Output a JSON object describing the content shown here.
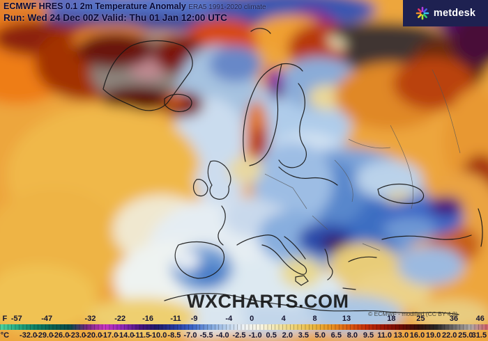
{
  "header": {
    "model": "ECMWF HRES 0.1",
    "title": "2m Temperature Anomaly",
    "climate_note": "ERA5 1991-2020 climate",
    "run_line": "Run: Wed 24 Dec 00Z Valid: Thu 01 Jan 12:00 UTC"
  },
  "branding": {
    "logo_text": "metdesk",
    "logo_icon": "metdesk-star",
    "watermark": "WXCHARTS.COM",
    "attribution": "© ECMWF - modified (CC BY 4.0)"
  },
  "scale_bar": {
    "f_prefix": "F",
    "c_prefix": "°C",
    "f_labels": [
      [
        "-57",
        3.4
      ],
      [
        "-47",
        9.6
      ],
      [
        "-32",
        18.5
      ],
      [
        "-22",
        24.6
      ],
      [
        "-16",
        30.3
      ],
      [
        "-11",
        36.0
      ],
      [
        "-9",
        39.8
      ],
      [
        "-4",
        46.9
      ],
      [
        "0",
        51.6
      ],
      [
        "4",
        58.1
      ],
      [
        "8",
        64.5
      ],
      [
        "13",
        71.0
      ],
      [
        "18",
        80.2
      ],
      [
        "25",
        86.2
      ],
      [
        "36",
        93.0
      ],
      [
        "46",
        98.4
      ]
    ],
    "c_labels": [
      [
        "-32.0",
        5.8
      ],
      [
        "-29.0",
        9.1
      ],
      [
        "-26.0",
        12.4
      ],
      [
        "-23.0",
        15.8
      ],
      [
        "-20.0",
        19.1
      ],
      [
        "-17.0",
        22.4
      ],
      [
        "-14.0",
        25.7
      ],
      [
        "-11.5",
        29.0
      ],
      [
        "-10.0",
        32.4
      ],
      [
        "-8.5",
        35.7
      ],
      [
        "-7.0",
        39.0
      ],
      [
        "-5.5",
        42.3
      ],
      [
        "-4.0",
        45.6
      ],
      [
        "-2.5",
        49.0
      ],
      [
        "-1.0",
        52.3
      ],
      [
        "0.5",
        55.6
      ],
      [
        "2.0",
        58.9
      ],
      [
        "3.5",
        62.2
      ],
      [
        "5.0",
        65.6
      ],
      [
        "6.5",
        68.9
      ],
      [
        "8.0",
        72.2
      ],
      [
        "9.5",
        75.5
      ],
      [
        "11.0",
        78.8
      ],
      [
        "13.0",
        82.2
      ],
      [
        "16.0",
        85.5
      ],
      [
        "19.0",
        88.8
      ],
      [
        "22.0",
        92.1
      ],
      [
        "25.0",
        95.4
      ],
      [
        "31.5",
        98.2
      ]
    ],
    "gradient": [
      {
        "pos": 0,
        "color": "#4fd49e"
      },
      {
        "pos": 3.6,
        "color": "#25a981"
      },
      {
        "pos": 7.1,
        "color": "#0f8166"
      },
      {
        "pos": 10.7,
        "color": "#0a6152"
      },
      {
        "pos": 14.3,
        "color": "#0a4a4a"
      },
      {
        "pos": 17.9,
        "color": "#782880"
      },
      {
        "pos": 21.4,
        "color": "#c835c0"
      },
      {
        "pos": 25,
        "color": "#9028b8"
      },
      {
        "pos": 28.6,
        "color": "#4a1480"
      },
      {
        "pos": 32.1,
        "color": "#201a6a"
      },
      {
        "pos": 35.7,
        "color": "#283a9e"
      },
      {
        "pos": 39.3,
        "color": "#3a62c6"
      },
      {
        "pos": 42.9,
        "color": "#7aa2dc"
      },
      {
        "pos": 46.4,
        "color": "#b8d0ec"
      },
      {
        "pos": 50,
        "color": "#eef2f4"
      },
      {
        "pos": 53.6,
        "color": "#f8f4e0"
      },
      {
        "pos": 57.1,
        "color": "#f0e4a8"
      },
      {
        "pos": 60.7,
        "color": "#eed06e"
      },
      {
        "pos": 64.3,
        "color": "#eab63e"
      },
      {
        "pos": 67.9,
        "color": "#e89020"
      },
      {
        "pos": 71.4,
        "color": "#dc5e12"
      },
      {
        "pos": 75,
        "color": "#c42e08"
      },
      {
        "pos": 78.6,
        "color": "#9c1606"
      },
      {
        "pos": 82.1,
        "color": "#700c04"
      },
      {
        "pos": 85.7,
        "color": "#38100a"
      },
      {
        "pos": 89.3,
        "color": "#2a2624"
      },
      {
        "pos": 92.9,
        "color": "#6e6a68"
      },
      {
        "pos": 96.4,
        "color": "#b0a8a4"
      },
      {
        "pos": 100,
        "color": "#d06068"
      }
    ]
  },
  "map": {
    "base_color": "#eda63e",
    "logo_ray_colors": [
      "#3bc4f0",
      "#2fd06e",
      "#aee637",
      "#f5d428",
      "#f08c28",
      "#e8386a",
      "#b43ae0",
      "#4a5af0"
    ],
    "blobs": [
      [
        95,
        18,
        130,
        34,
        "#5a6cc0"
      ],
      [
        260,
        16,
        150,
        30,
        "#5272c8"
      ],
      [
        420,
        14,
        120,
        28,
        "#3a56b0"
      ],
      [
        170,
        32,
        210,
        10,
        "#39418f"
      ],
      [
        15,
        14,
        55,
        26,
        "#e08030"
      ],
      [
        447,
        33,
        32,
        22,
        "#7a1c94"
      ],
      [
        628,
        16,
        26,
        18,
        "#8a20a0"
      ],
      [
        672,
        28,
        45,
        32,
        "#55106a"
      ],
      [
        25,
        85,
        85,
        65,
        "#ee7d15"
      ],
      [
        55,
        55,
        65,
        25,
        "#8c2008"
      ],
      [
        125,
        90,
        75,
        55,
        "#a33005"
      ],
      [
        165,
        58,
        60,
        22,
        "#f09030"
      ],
      [
        320,
        55,
        55,
        28,
        "#d84a10"
      ],
      [
        418,
        48,
        55,
        26,
        "#f0a030"
      ],
      [
        468,
        70,
        55,
        38,
        "#b83808"
      ],
      [
        497,
        57,
        26,
        14,
        "#f6eec2"
      ],
      [
        545,
        48,
        70,
        16,
        "#3a3028"
      ],
      [
        572,
        75,
        80,
        42,
        "#403430"
      ],
      [
        645,
        92,
        55,
        42,
        "#6a2a10"
      ],
      [
        688,
        58,
        40,
        38,
        "#4a1038"
      ],
      [
        208,
        102,
        78,
        52,
        "#8d837b"
      ],
      [
        213,
        96,
        28,
        18,
        "#c18a92"
      ],
      [
        165,
        72,
        55,
        26,
        "#6b1408"
      ],
      [
        258,
        78,
        38,
        28,
        "#7c1808"
      ],
      [
        198,
        142,
        52,
        18,
        "#5c1005"
      ],
      [
        312,
        140,
        60,
        75,
        "#a6c2e0"
      ],
      [
        300,
        200,
        52,
        60,
        "#cadcee"
      ],
      [
        338,
        92,
        38,
        26,
        "#6888c8"
      ],
      [
        262,
        150,
        30,
        19,
        "#7c1608"
      ],
      [
        251,
        144,
        12,
        8,
        "#e06818"
      ],
      [
        432,
        172,
        72,
        68,
        "#afccea"
      ],
      [
        458,
        120,
        58,
        38,
        "#8aacd8"
      ],
      [
        470,
        140,
        28,
        18,
        "#ead898"
      ],
      [
        440,
        228,
        58,
        38,
        "#d2e2f2"
      ],
      [
        368,
        192,
        17,
        48,
        "#e07820"
      ],
      [
        372,
        206,
        13,
        24,
        "#b23208"
      ],
      [
        394,
        116,
        13,
        19,
        "#8d12a2"
      ],
      [
        397,
        131,
        9,
        13,
        "#5c0a7a"
      ],
      [
        560,
        138,
        80,
        48,
        "#e08828"
      ],
      [
        622,
        120,
        58,
        38,
        "#ba4208"
      ],
      [
        684,
        205,
        48,
        78,
        "#e89830"
      ],
      [
        690,
        262,
        30,
        40,
        "#a43208"
      ],
      [
        662,
        305,
        55,
        58,
        "#eaa342"
      ],
      [
        652,
        352,
        38,
        28,
        "#c86018"
      ],
      [
        498,
        300,
        118,
        88,
        "#7ba3d8"
      ],
      [
        520,
        320,
        68,
        48,
        "#3d6ec2"
      ],
      [
        468,
        278,
        58,
        48,
        "#5887cc"
      ],
      [
        420,
        262,
        58,
        58,
        "#9dbde4"
      ],
      [
        558,
        258,
        48,
        28,
        "#bad2ea"
      ],
      [
        574,
        284,
        20,
        10,
        "#e0d098"
      ],
      [
        150,
        252,
        140,
        100,
        "#f0b848"
      ],
      [
        78,
        352,
        100,
        82,
        "#eeb445"
      ],
      [
        58,
        430,
        82,
        50,
        "#f0c252"
      ],
      [
        232,
        330,
        70,
        50,
        "#f0e8d0"
      ],
      [
        330,
        360,
        118,
        78,
        "#e5edf3"
      ],
      [
        262,
        402,
        98,
        58,
        "#eef3f1"
      ],
      [
        380,
        422,
        118,
        48,
        "#dde9f1"
      ],
      [
        316,
        260,
        36,
        34,
        "#ccdcee"
      ],
      [
        352,
        244,
        25,
        19,
        "#e8d8a0"
      ],
      [
        360,
        312,
        40,
        28,
        "#c9d9ec"
      ],
      [
        290,
        385,
        45,
        33,
        "#6f9cd4"
      ],
      [
        300,
        394,
        24,
        17,
        "#4a7ec8"
      ],
      [
        268,
        374,
        19,
        14,
        "#e9eff5"
      ],
      [
        420,
        340,
        50,
        38,
        "#88aede"
      ],
      [
        468,
        344,
        40,
        24,
        "#2c4caa"
      ],
      [
        480,
        350,
        19,
        12,
        "#3b1468"
      ],
      [
        432,
        392,
        30,
        22,
        "#e8d890"
      ],
      [
        522,
        382,
        50,
        33,
        "#e8cc78"
      ],
      [
        560,
        420,
        58,
        28,
        "#ecd288"
      ],
      [
        608,
        312,
        58,
        28,
        "#3d68c6"
      ],
      [
        640,
        296,
        24,
        14,
        "#46107c"
      ],
      [
        588,
        330,
        38,
        18,
        "#6e98d4"
      ],
      [
        618,
        382,
        48,
        28,
        "#9cbae0"
      ],
      [
        500,
        452,
        78,
        28,
        "#aac6e4"
      ],
      [
        380,
        460,
        78,
        24,
        "#c2d6ea"
      ],
      [
        298,
        460,
        58,
        24,
        "#dae6f0"
      ],
      [
        648,
        452,
        55,
        22,
        "#e8cc80"
      ],
      [
        205,
        456,
        78,
        28,
        "#eecf70"
      ]
    ],
    "coastlines": [
      "M148,128 C155,100 168,78 188,66 C210,56 240,56 262,66 C276,76 280,92 272,104 C262,118 252,132 240,148 C228,160 210,162 194,154 C176,146 160,140 148,128 Z",
      "M236,142 C244,135 258,133 270,139 C278,145 276,155 266,159 C254,163 242,158 236,150 Z",
      "M352,232 C344,196 352,152 368,122 C376,106 390,96 404,92 C416,90 428,94 434,102",
      "M404,92 C400,110 396,128 398,146 C400,168 396,190 388,210 C382,226 370,236 358,238",
      "M428,120 C438,132 440,150 434,166 C428,182 428,198 436,210 C442,220 440,232 430,238 C418,244 406,240 400,230",
      "M400,240 C412,252 428,258 444,256 C460,254 474,258 484,266",
      "M302,232 C296,244 298,256 304,266 C298,274 302,284 312,286 C322,288 330,280 328,268 C334,258 330,246 322,238 C315,232 308,230 302,232 Z",
      "M282,258 C276,264 276,274 282,280 C290,284 298,280 298,270 C296,262 289,256 282,258 Z",
      "M318,296 C326,306 324,318 318,328 C310,336 312,346 320,352",
      "M256,352 C272,346 292,346 308,352 C320,356 324,366 320,378 C314,392 300,400 284,400 C268,398 256,388 252,374 C250,366 252,358 256,352 Z",
      "M340,352 C352,344 366,340 380,338 C392,336 400,342 406,352 C414,364 424,374 436,382 C442,388 440,396 432,394 C420,390 410,380 402,370 C394,360 386,354 376,352",
      "M424,398 l12,-2 6,8 -10,6 -8,-6 z",
      "M408,340 C420,348 430,360 438,372",
      "M466,358 C472,368 468,376 474,384 C480,390 476,398 470,402",
      "M492,414 l18,2",
      "M500,376 C512,370 526,368 540,370",
      "M548,344 C570,338 596,338 618,342 C640,346 660,344 676,338",
      "M542,272 C560,262 586,262 602,272 C612,280 608,290 594,292 C574,294 554,288 544,280 Z",
      "M236,432 C270,420 310,418 348,428 C380,436 414,438 446,444 C482,450 522,444 554,448 C590,452 626,446 658,452",
      "M686,300 C692,316 694,336 690,354",
      "M360,45 C370,38 382,40 388,48"
    ],
    "borders": [
      "M380,250 L420,270 440,300",
      "M480,230 C500,250 510,270 505,290",
      "M560,180 C580,220 600,260 590,300",
      "M620,100 C640,140 650,180 660,220",
      "M448,310 L470,330",
      "M520,350 L545,360",
      "M500,200 C520,210 540,215 560,212"
    ]
  }
}
